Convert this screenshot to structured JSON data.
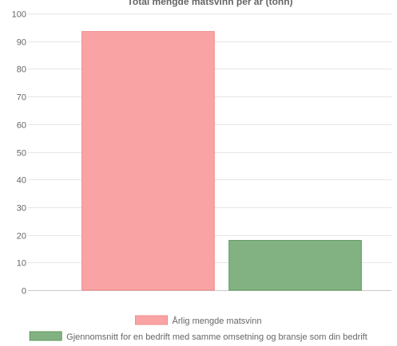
{
  "chart_data": {
    "type": "bar",
    "title": "Total mengde matsvinn per år (tonn)",
    "xlabel": "",
    "ylabel": "",
    "ylim": [
      0,
      100
    ],
    "yticks": [
      0,
      10,
      20,
      30,
      40,
      50,
      60,
      70,
      80,
      90,
      100
    ],
    "grid": true,
    "legend_position": "bottom",
    "series": [
      {
        "name": "Årlig mengde matsvinn",
        "value": 93.5,
        "color": "#f9a3a4",
        "border": "#f08a8b"
      },
      {
        "name": "Gjennomsnitt for en bedrift med samme omsetning og bransje som din bedrift",
        "value": 18,
        "color": "#82b182",
        "border": "#5e9a5e"
      }
    ]
  }
}
